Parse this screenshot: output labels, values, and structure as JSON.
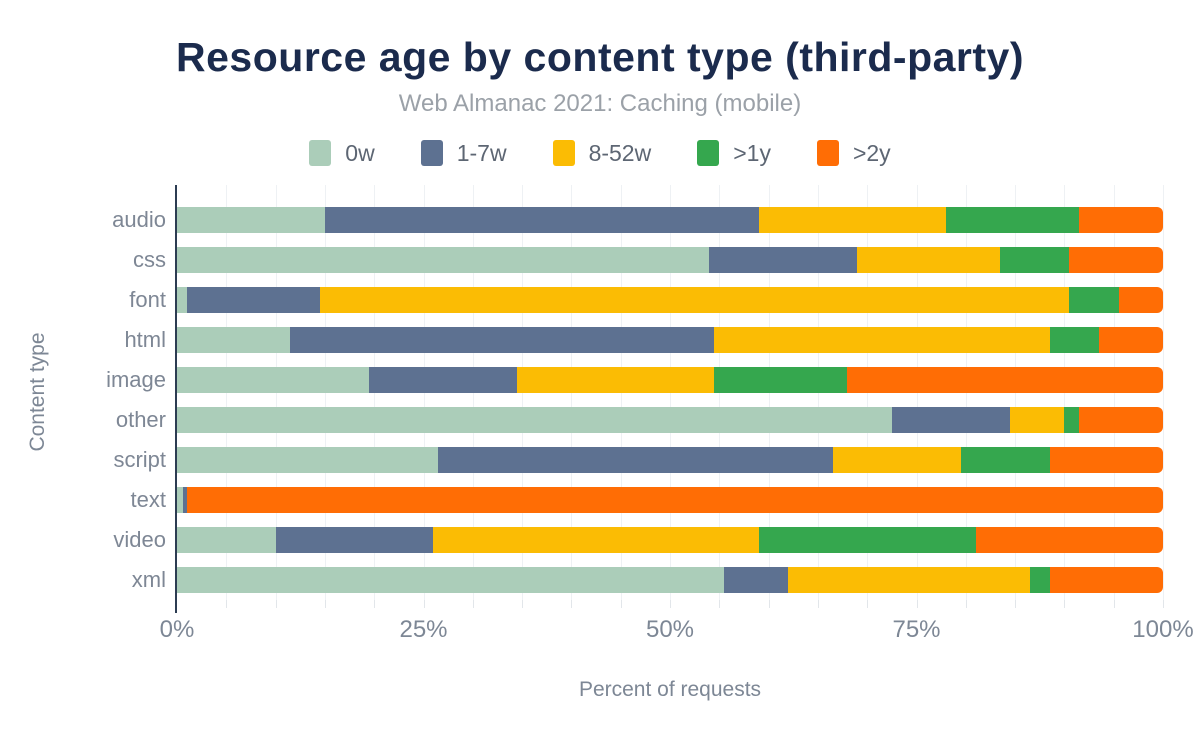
{
  "chart_data": {
    "type": "bar",
    "orientation": "horizontal",
    "stacked": true,
    "title": "Resource age by content type (third-party)",
    "subtitle": "Web Almanac 2021: Caching (mobile)",
    "xlabel": "Percent of requests",
    "ylabel": "Content type",
    "unit": "%",
    "xlim": [
      0,
      100
    ],
    "x_tick_labels": [
      "0%",
      "25%",
      "50%",
      "75%",
      "100%"
    ],
    "x_tick_step_major_pct": 25,
    "grid_minor_step_pct": 5,
    "legend_position": "top",
    "categories": [
      "audio",
      "css",
      "font",
      "html",
      "image",
      "other",
      "script",
      "text",
      "video",
      "xml"
    ],
    "series": [
      {
        "name": "0w",
        "color": "#abcdb9",
        "values": [
          15,
          54,
          1,
          11.5,
          19.5,
          72.5,
          26.5,
          0.6,
          10,
          55.5
        ]
      },
      {
        "name": "1-7w",
        "color": "#5d7191",
        "values": [
          44,
          15,
          13.5,
          43,
          15,
          12,
          40,
          0.4,
          16,
          6.5
        ]
      },
      {
        "name": "8-52w",
        "color": "#fbbc04",
        "values": [
          19,
          14.5,
          76,
          34,
          20,
          5.5,
          13,
          0,
          33,
          24.5
        ]
      },
      {
        "name": ">1y",
        "color": "#35a74e",
        "values": [
          13.5,
          7,
          5,
          5,
          13.5,
          1.5,
          9,
          0,
          22,
          2
        ]
      },
      {
        "name": ">2y",
        "color": "#ff6d05",
        "values": [
          8.5,
          9.5,
          4.5,
          6.5,
          32,
          8.5,
          11.5,
          99,
          19,
          11.5
        ]
      }
    ],
    "colors": {
      "title_text": "#1b2b4d",
      "subtitle_text": "#9ba1a8",
      "axis_text": "#7d8795",
      "legend_text": "#5d6673",
      "axis_line": "#2c3c52",
      "gridline": "#eef1f4",
      "background": "#ffffff"
    }
  }
}
